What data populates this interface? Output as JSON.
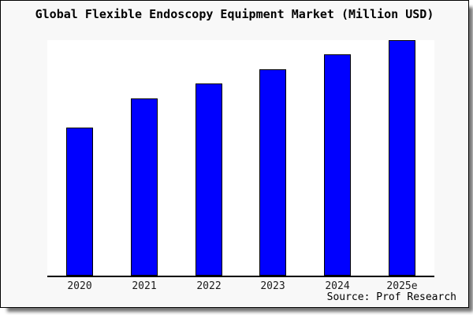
{
  "title": "Global Flexible Endoscopy Equipment Market (Million USD)",
  "source_credit": "Source: Prof Research",
  "colors": {
    "bar_fill": "#0000FF",
    "bar_border": "#000000",
    "card_background": "#F8F8F8",
    "plot_background": "#FFFFFF",
    "axis_line": "#000000",
    "title_text": "#000000",
    "tick_text": "#1A1A1A"
  },
  "chart_data": {
    "type": "bar",
    "title": "Global Flexible Endoscopy Equipment Market (Million USD)",
    "categories": [
      "2020",
      "2021",
      "2022",
      "2023",
      "2024",
      "2025e"
    ],
    "values": [
      63,
      75.3,
      81.7,
      87.7,
      94,
      100
    ],
    "values_note": "No y-axis or data labels are shown in the image; values are relative bar heights as a percentage of the tallest bar (2025e = 100).",
    "xlabel": "",
    "ylabel": "",
    "ylim_relative": [
      0,
      100
    ],
    "grid": false,
    "legend": false,
    "bar_color": "#0000FF",
    "annotation": "Source: Prof Research"
  }
}
